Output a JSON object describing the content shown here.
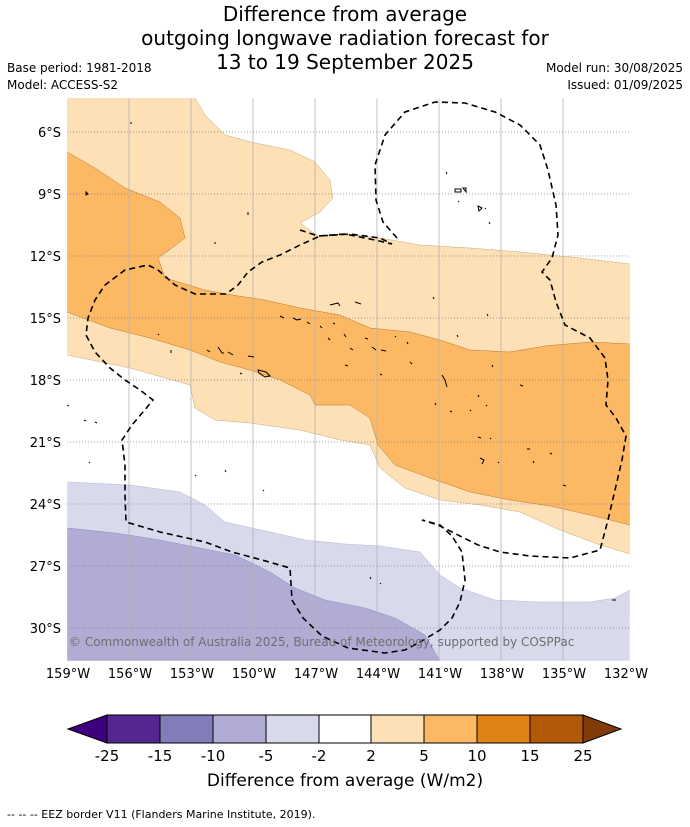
{
  "title": {
    "line1": "Difference from average",
    "line2": "outgoing longwave radiation forecast for",
    "line3": "13 to 19 September 2025"
  },
  "meta": {
    "base_period": "Base period: 1981-2018",
    "model": "Model: ACCESS-S2",
    "model_run": "Model run: 30/08/2025",
    "issued": "Issued: 01/09/2025"
  },
  "map": {
    "latitude_labels": [
      "6°S",
      "9°S",
      "12°S",
      "15°S",
      "18°S",
      "21°S",
      "24°S",
      "27°S",
      "30°S"
    ],
    "longitude_labels": [
      "159°W",
      "156°W",
      "153°W",
      "150°W",
      "147°W",
      "144°W",
      "141°W",
      "138°W",
      "135°W",
      "132°W"
    ],
    "copyright": "© Commonwealth of Australia 2025, Bureau of Meteorology, supported by COSPPac"
  },
  "colorbar": {
    "ticks": [
      "-25",
      "-15",
      "-10",
      "-5",
      "-2",
      "2",
      "5",
      "10",
      "15",
      "25"
    ],
    "colors": [
      "#3f007d",
      "#54278f",
      "#807dba",
      "#b1acd3",
      "#d9d9ec",
      "#ffffff",
      "#fee0b6",
      "#fdb863",
      "#e08214",
      "#b35806",
      "#7f3b08"
    ],
    "label": "Difference from average (W/m2)"
  },
  "footer": "--  --  -- EEZ border V11 (Flanders Marine Institute, 2019)."
}
